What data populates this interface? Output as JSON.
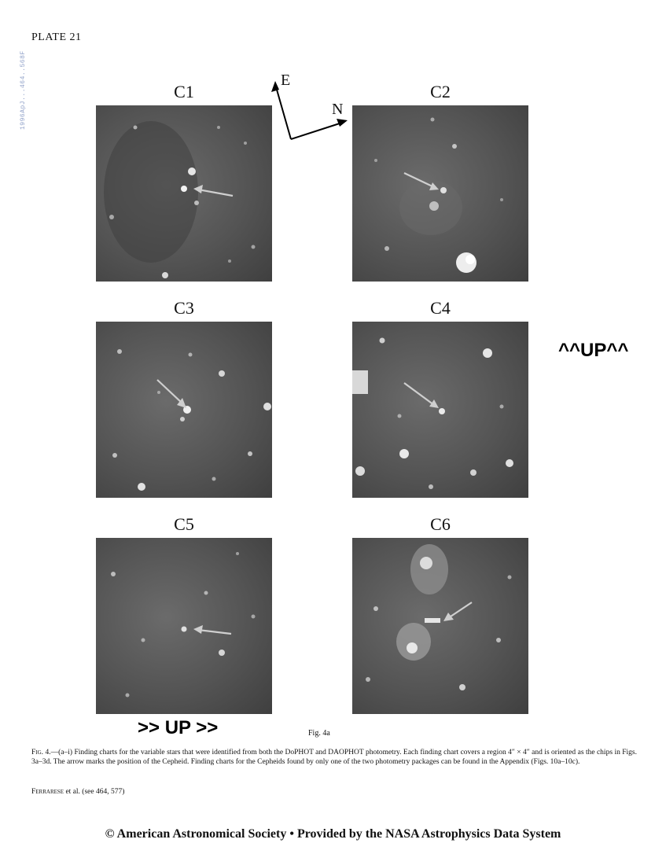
{
  "side_code": "1996ApJ...464..568F",
  "plate_label": "PLATE 21",
  "compass": {
    "east": "E",
    "north": "N"
  },
  "panels": [
    {
      "label": "C1",
      "bg": "#5a5a5a"
    },
    {
      "label": "C2",
      "bg": "#555555"
    },
    {
      "label": "C3",
      "bg": "#5f5f5f"
    },
    {
      "label": "C4",
      "bg": "#5a5a5a"
    },
    {
      "label": "C5",
      "bg": "#565656"
    },
    {
      "label": "C6",
      "bg": "#585858"
    }
  ],
  "orientation_notes": {
    "right": "^^UP^^",
    "bottom": ">> UP >>"
  },
  "figure_label": "Fig. 4a",
  "caption": {
    "prefix": "Fig. 4.",
    "body": "—(a–i) Finding charts for the variable stars that were identified from both the DoPHOT and DAOPHOT photometry. Each finding chart covers a region 4″ × 4″ and is oriented as the chips in Figs. 3a–3d. The arrow marks the position of the Cepheid. Finding charts for the Cepheids found by only one of the two photometry packages can be found in the Appendix (Figs. 10a–10c)."
  },
  "footer_credit": {
    "author": "Ferrarese",
    "rest": " et al. (see 464, 577)"
  },
  "copyright": "© American Astronomical Society • Provided by the NASA Astrophysics Data System"
}
